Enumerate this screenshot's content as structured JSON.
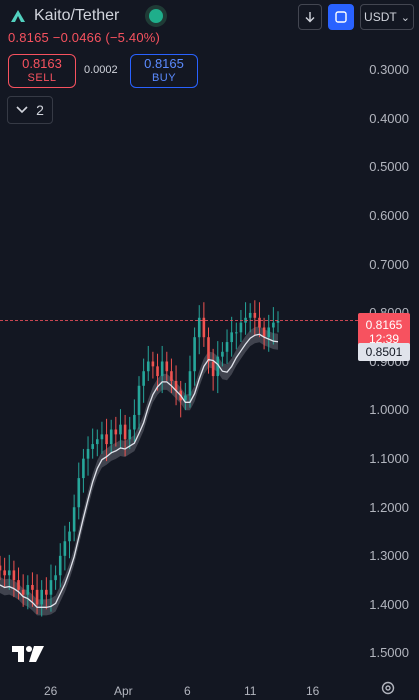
{
  "header": {
    "symbol_title": "Kaito/Tether",
    "price_line": "0.8165 −0.0466 (−5.40%)",
    "currency_button": "USDT",
    "currency_chevron": "⌄"
  },
  "trade": {
    "sell_price": "0.8163",
    "sell_label": "SELL",
    "spread": "0.0002",
    "buy_price": "0.8165",
    "buy_label": "BUY"
  },
  "indicators_toggle": {
    "count": "2"
  },
  "price_axis": {
    "labels": [
      "0.3000",
      "0.4000",
      "0.5000",
      "0.6000",
      "0.7000",
      "0.8000",
      "0.9000",
      "1.0000",
      "1.1000",
      "1.2000",
      "1.3000",
      "1.4000",
      "1.5000"
    ],
    "inverted": true
  },
  "time_axis": {
    "labels": [
      "26",
      "Apr",
      "6",
      "11",
      "16"
    ]
  },
  "last_price_tag": {
    "price": "0.8165",
    "countdown": "12:39"
  },
  "avg_tag": {
    "value": "0.8501"
  },
  "colors": {
    "up": "#26a69a",
    "down": "#ef5350",
    "accent": "#2962ff",
    "sell": "#f7525f"
  },
  "chart_data": {
    "type": "bar",
    "style": "candlestick",
    "y_scale": "inverted",
    "ylim": [
      0.26,
      1.55
    ],
    "closes": [
      1.33,
      1.34,
      1.33,
      1.35,
      1.37,
      1.38,
      1.36,
      1.37,
      1.4,
      1.37,
      1.38,
      1.35,
      1.34,
      1.3,
      1.27,
      1.25,
      1.2,
      1.14,
      1.1,
      1.08,
      1.07,
      1.06,
      1.05,
      1.07,
      1.04,
      1.05,
      1.03,
      1.06,
      1.04,
      1.01,
      0.95,
      0.92,
      0.9,
      0.91,
      0.93,
      0.9,
      0.92,
      0.94,
      0.96,
      0.98,
      0.97,
      0.92,
      0.85,
      0.81,
      0.85,
      0.9,
      0.93,
      0.89,
      0.88,
      0.86,
      0.84,
      0.84,
      0.82,
      0.81,
      0.8,
      0.81,
      0.83,
      0.85,
      0.83,
      0.82,
      0.8165
    ]
  }
}
